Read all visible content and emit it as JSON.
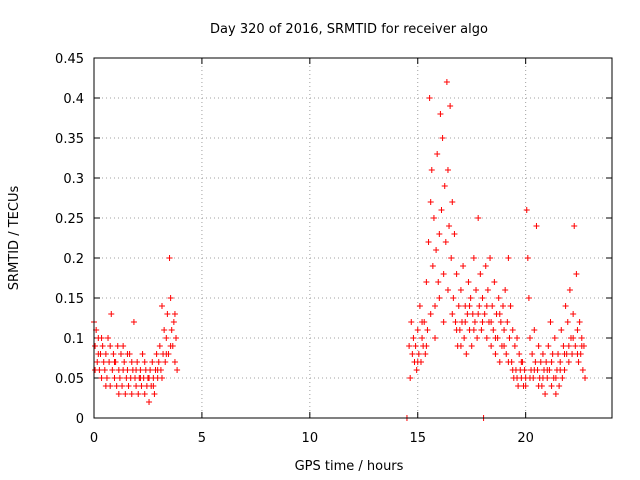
{
  "chart_data": {
    "type": "scatter",
    "title": "Day 320 of 2016, SRMTID for receiver algo",
    "xlabel": "GPS time / hours",
    "ylabel": "SRMTID / TECUs",
    "xlim": [
      0,
      24
    ],
    "ylim": [
      0,
      0.45
    ],
    "grid": true,
    "marker": "+",
    "color": "#ff0000",
    "x_ticks": [
      0,
      5,
      10,
      15,
      20
    ],
    "x_tick_labels": [
      "0",
      "5",
      "10",
      "15",
      "20"
    ],
    "y_ticks": [
      0,
      0.05,
      0.1,
      0.15,
      0.2,
      0.25,
      0.3,
      0.35,
      0.4,
      0.45
    ],
    "y_tick_labels": [
      "0",
      "0.05",
      "0.1",
      "0.15",
      "0.2",
      "0.25",
      "0.3",
      "0.35",
      "0.4",
      "0.45"
    ],
    "series": [
      {
        "name": "SRMTID",
        "points": [
          [
            0.0,
            0.12
          ],
          [
            0.05,
            0.09
          ],
          [
            0.1,
            0.11
          ],
          [
            0.15,
            0.07
          ],
          [
            0.2,
            0.1
          ],
          [
            0.25,
            0.06
          ],
          [
            0.3,
            0.08
          ],
          [
            0.35,
            0.05
          ],
          [
            0.4,
            0.09
          ],
          [
            0.45,
            0.07
          ],
          [
            0.5,
            0.06
          ],
          [
            0.55,
            0.08
          ],
          [
            0.6,
            0.05
          ],
          [
            0.65,
            0.1
          ],
          [
            0.7,
            0.07
          ],
          [
            0.75,
            0.04
          ],
          [
            0.8,
            0.13
          ],
          [
            0.85,
            0.06
          ],
          [
            0.9,
            0.08
          ],
          [
            0.95,
            0.05
          ],
          [
            1.0,
            0.07
          ],
          [
            1.05,
            0.04
          ],
          [
            1.1,
            0.09
          ],
          [
            1.15,
            0.06
          ],
          [
            1.2,
            0.05
          ],
          [
            1.25,
            0.08
          ],
          [
            1.3,
            0.04
          ],
          [
            1.35,
            0.06
          ],
          [
            1.4,
            0.07
          ],
          [
            1.45,
            0.03
          ],
          [
            1.5,
            0.05
          ],
          [
            1.55,
            0.06
          ],
          [
            1.6,
            0.04
          ],
          [
            1.65,
            0.08
          ],
          [
            1.7,
            0.05
          ],
          [
            1.75,
            0.03
          ],
          [
            1.8,
            0.06
          ],
          [
            1.85,
            0.12
          ],
          [
            1.9,
            0.05
          ],
          [
            1.95,
            0.04
          ],
          [
            2.0,
            0.07
          ],
          [
            2.05,
            0.03
          ],
          [
            2.1,
            0.05
          ],
          [
            2.15,
            0.06
          ],
          [
            2.2,
            0.04
          ],
          [
            2.25,
            0.08
          ],
          [
            2.3,
            0.05
          ],
          [
            2.35,
            0.03
          ],
          [
            2.4,
            0.06
          ],
          [
            2.45,
            0.04
          ],
          [
            2.5,
            0.05
          ],
          [
            2.55,
            0.02
          ],
          [
            2.6,
            0.06
          ],
          [
            2.65,
            0.04
          ],
          [
            2.7,
            0.07
          ],
          [
            2.75,
            0.05
          ],
          [
            2.8,
            0.03
          ],
          [
            2.85,
            0.06
          ],
          [
            2.9,
            0.08
          ],
          [
            2.95,
            0.05
          ],
          [
            3.0,
            0.07
          ],
          [
            3.05,
            0.09
          ],
          [
            3.1,
            0.06
          ],
          [
            3.15,
            0.14
          ],
          [
            3.2,
            0.08
          ],
          [
            3.25,
            0.11
          ],
          [
            3.3,
            0.07
          ],
          [
            3.35,
            0.1
          ],
          [
            3.4,
            0.13
          ],
          [
            3.45,
            0.08
          ],
          [
            3.5,
            0.2
          ],
          [
            3.55,
            0.15
          ],
          [
            3.6,
            0.11
          ],
          [
            3.65,
            0.09
          ],
          [
            3.7,
            0.12
          ],
          [
            3.75,
            0.07
          ],
          [
            3.8,
            0.1
          ],
          [
            3.85,
            0.06
          ],
          [
            0.05,
            0.06
          ],
          [
            0.2,
            0.08
          ],
          [
            0.35,
            0.1
          ],
          [
            0.55,
            0.04
          ],
          [
            0.75,
            0.09
          ],
          [
            0.95,
            0.07
          ],
          [
            1.15,
            0.03
          ],
          [
            1.35,
            0.09
          ],
          [
            1.55,
            0.08
          ],
          [
            1.75,
            0.07
          ],
          [
            1.95,
            0.06
          ],
          [
            2.15,
            0.05
          ],
          [
            2.35,
            0.07
          ],
          [
            2.55,
            0.05
          ],
          [
            2.75,
            0.04
          ],
          [
            2.95,
            0.06
          ],
          [
            3.15,
            0.05
          ],
          [
            3.35,
            0.08
          ],
          [
            3.55,
            0.09
          ],
          [
            3.75,
            0.13
          ],
          [
            14.5,
            0.0
          ],
          [
            14.6,
            0.09
          ],
          [
            14.65,
            0.05
          ],
          [
            14.7,
            0.12
          ],
          [
            14.75,
            0.08
          ],
          [
            14.8,
            0.1
          ],
          [
            14.85,
            0.07
          ],
          [
            14.9,
            0.09
          ],
          [
            14.95,
            0.06
          ],
          [
            15.0,
            0.11
          ],
          [
            15.05,
            0.08
          ],
          [
            15.1,
            0.14
          ],
          [
            15.15,
            0.07
          ],
          [
            15.2,
            0.1
          ],
          [
            15.25,
            0.09
          ],
          [
            15.3,
            0.12
          ],
          [
            15.35,
            0.08
          ],
          [
            15.4,
            0.17
          ],
          [
            15.45,
            0.11
          ],
          [
            15.5,
            0.22
          ],
          [
            15.55,
            0.4
          ],
          [
            15.6,
            0.27
          ],
          [
            15.65,
            0.31
          ],
          [
            15.7,
            0.19
          ],
          [
            15.75,
            0.25
          ],
          [
            15.8,
            0.14
          ],
          [
            15.85,
            0.21
          ],
          [
            15.9,
            0.33
          ],
          [
            15.95,
            0.17
          ],
          [
            16.0,
            0.23
          ],
          [
            16.05,
            0.38
          ],
          [
            16.1,
            0.26
          ],
          [
            16.15,
            0.35
          ],
          [
            16.2,
            0.18
          ],
          [
            16.25,
            0.29
          ],
          [
            16.3,
            0.22
          ],
          [
            16.35,
            0.42
          ],
          [
            16.4,
            0.31
          ],
          [
            16.45,
            0.24
          ],
          [
            16.5,
            0.39
          ],
          [
            16.55,
            0.2
          ],
          [
            16.6,
            0.27
          ],
          [
            16.65,
            0.15
          ],
          [
            16.7,
            0.23
          ],
          [
            16.75,
            0.12
          ],
          [
            16.8,
            0.18
          ],
          [
            16.85,
            0.09
          ],
          [
            16.9,
            0.14
          ],
          [
            16.95,
            0.11
          ],
          [
            17.0,
            0.16
          ],
          [
            17.05,
            0.12
          ],
          [
            17.1,
            0.19
          ],
          [
            17.15,
            0.1
          ],
          [
            17.2,
            0.14
          ],
          [
            17.25,
            0.08
          ],
          [
            17.3,
            0.13
          ],
          [
            17.35,
            0.17
          ],
          [
            17.4,
            0.11
          ],
          [
            17.45,
            0.15
          ],
          [
            17.5,
            0.09
          ],
          [
            17.55,
            0.13
          ],
          [
            17.6,
            0.2
          ],
          [
            17.65,
            0.12
          ],
          [
            17.7,
            0.16
          ],
          [
            17.75,
            0.1
          ],
          [
            17.8,
            0.25
          ],
          [
            17.85,
            0.14
          ],
          [
            17.9,
            0.18
          ],
          [
            17.95,
            0.11
          ],
          [
            18.0,
            0.15
          ],
          [
            18.05,
            0.0
          ],
          [
            18.1,
            0.13
          ],
          [
            18.15,
            0.19
          ],
          [
            18.2,
            0.1
          ],
          [
            18.25,
            0.16
          ],
          [
            18.3,
            0.12
          ],
          [
            18.35,
            0.2
          ],
          [
            18.4,
            0.09
          ],
          [
            18.45,
            0.14
          ],
          [
            18.5,
            0.11
          ],
          [
            18.55,
            0.17
          ],
          [
            18.6,
            0.08
          ],
          [
            18.65,
            0.13
          ],
          [
            18.7,
            0.1
          ],
          [
            18.75,
            0.15
          ],
          [
            18.8,
            0.07
          ],
          [
            18.85,
            0.12
          ],
          [
            18.9,
            0.09
          ],
          [
            18.95,
            0.14
          ],
          [
            19.0,
            0.11
          ],
          [
            19.05,
            0.16
          ],
          [
            19.1,
            0.08
          ],
          [
            19.15,
            0.12
          ],
          [
            19.2,
            0.2
          ],
          [
            19.25,
            0.1
          ],
          [
            19.3,
            0.14
          ],
          [
            19.35,
            0.07
          ],
          [
            19.4,
            0.11
          ],
          [
            19.45,
            0.05
          ],
          [
            19.5,
            0.09
          ],
          [
            19.55,
            0.06
          ],
          [
            19.6,
            0.1
          ],
          [
            19.65,
            0.04
          ],
          [
            19.7,
            0.08
          ],
          [
            19.75,
            0.06
          ],
          [
            19.8,
            0.05
          ],
          [
            19.85,
            0.07
          ],
          [
            19.9,
            0.04
          ],
          [
            19.95,
            0.06
          ],
          [
            20.0,
            0.05
          ],
          [
            20.05,
            0.26
          ],
          [
            20.1,
            0.2
          ],
          [
            20.15,
            0.15
          ],
          [
            20.2,
            0.1
          ],
          [
            20.25,
            0.06
          ],
          [
            20.3,
            0.08
          ],
          [
            20.35,
            0.05
          ],
          [
            20.4,
            0.11
          ],
          [
            20.45,
            0.07
          ],
          [
            20.5,
            0.24
          ],
          [
            20.55,
            0.06
          ],
          [
            20.6,
            0.09
          ],
          [
            20.65,
            0.05
          ],
          [
            20.7,
            0.07
          ],
          [
            20.75,
            0.04
          ],
          [
            20.8,
            0.08
          ],
          [
            20.85,
            0.06
          ],
          [
            20.9,
            0.03
          ],
          [
            20.95,
            0.07
          ],
          [
            21.0,
            0.05
          ],
          [
            21.05,
            0.09
          ],
          [
            21.1,
            0.06
          ],
          [
            21.15,
            0.12
          ],
          [
            21.2,
            0.04
          ],
          [
            21.25,
            0.08
          ],
          [
            21.3,
            0.05
          ],
          [
            21.35,
            0.1
          ],
          [
            21.4,
            0.03
          ],
          [
            21.45,
            0.06
          ],
          [
            21.5,
            0.08
          ],
          [
            21.55,
            0.04
          ],
          [
            21.6,
            0.07
          ],
          [
            21.65,
            0.11
          ],
          [
            21.7,
            0.05
          ],
          [
            21.75,
            0.09
          ],
          [
            21.8,
            0.06
          ],
          [
            21.85,
            0.14
          ],
          [
            21.9,
            0.08
          ],
          [
            21.95,
            0.12
          ],
          [
            22.0,
            0.07
          ],
          [
            22.05,
            0.16
          ],
          [
            22.1,
            0.1
          ],
          [
            22.15,
            0.08
          ],
          [
            22.2,
            0.13
          ],
          [
            22.25,
            0.24
          ],
          [
            22.3,
            0.09
          ],
          [
            22.35,
            0.18
          ],
          [
            22.4,
            0.11
          ],
          [
            22.45,
            0.07
          ],
          [
            22.5,
            0.12
          ],
          [
            22.55,
            0.08
          ],
          [
            22.6,
            0.1
          ],
          [
            22.65,
            0.06
          ],
          [
            22.7,
            0.09
          ],
          [
            22.75,
            0.05
          ],
          [
            15.0,
            0.07
          ],
          [
            15.2,
            0.12
          ],
          [
            15.4,
            0.09
          ],
          [
            15.6,
            0.13
          ],
          [
            15.8,
            0.1
          ],
          [
            16.0,
            0.15
          ],
          [
            16.2,
            0.12
          ],
          [
            16.4,
            0.16
          ],
          [
            16.6,
            0.13
          ],
          [
            16.8,
            0.11
          ],
          [
            17.0,
            0.09
          ],
          [
            17.2,
            0.12
          ],
          [
            17.4,
            0.14
          ],
          [
            17.6,
            0.11
          ],
          [
            17.8,
            0.13
          ],
          [
            18.0,
            0.12
          ],
          [
            18.2,
            0.14
          ],
          [
            18.4,
            0.12
          ],
          [
            18.6,
            0.1
          ],
          [
            18.8,
            0.13
          ],
          [
            19.0,
            0.09
          ],
          [
            19.2,
            0.07
          ],
          [
            19.4,
            0.06
          ],
          [
            19.6,
            0.05
          ],
          [
            19.8,
            0.07
          ],
          [
            20.0,
            0.04
          ],
          [
            20.2,
            0.05
          ],
          [
            20.4,
            0.06
          ],
          [
            20.6,
            0.04
          ],
          [
            20.8,
            0.05
          ],
          [
            21.0,
            0.06
          ],
          [
            21.2,
            0.07
          ],
          [
            21.4,
            0.05
          ],
          [
            21.6,
            0.06
          ],
          [
            21.8,
            0.08
          ],
          [
            22.0,
            0.09
          ],
          [
            22.2,
            0.1
          ],
          [
            22.4,
            0.08
          ],
          [
            22.6,
            0.09
          ]
        ]
      }
    ]
  }
}
